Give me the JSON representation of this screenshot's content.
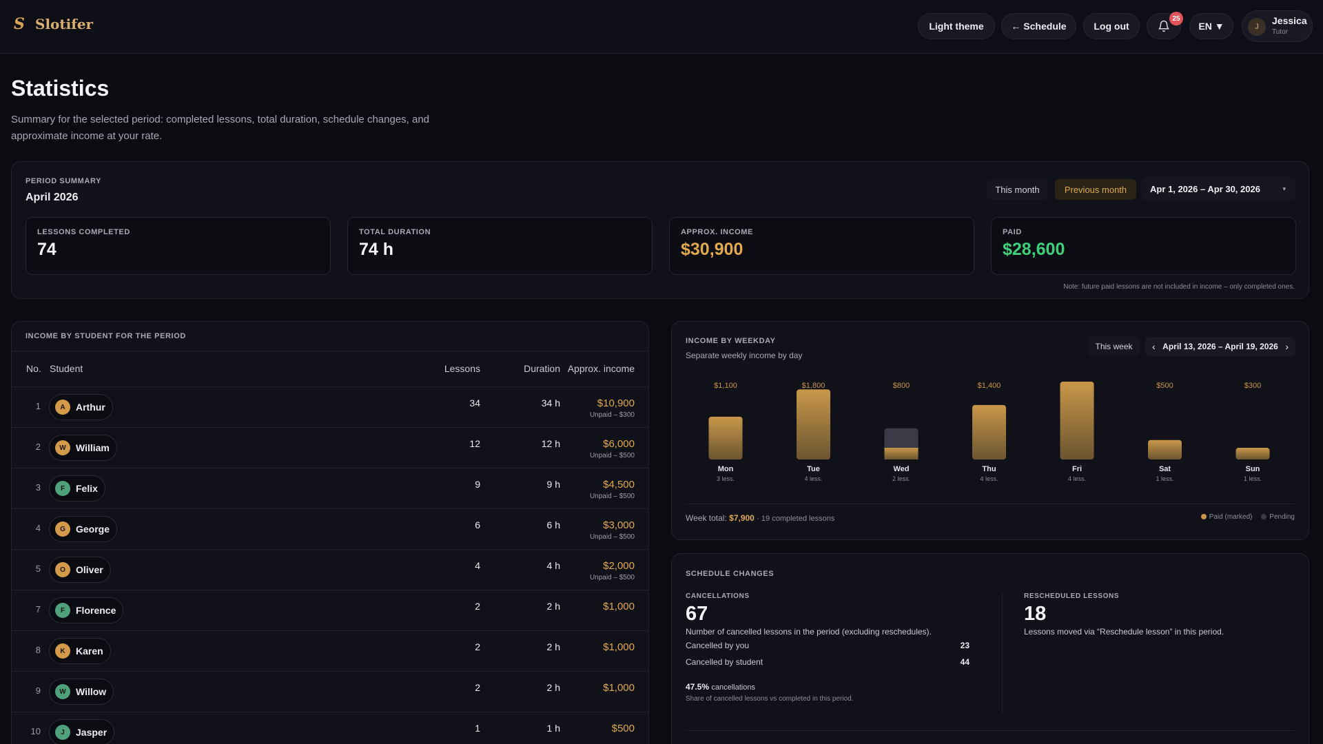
{
  "app": {
    "logo_mark": "S",
    "name": "Slotifer"
  },
  "header": {
    "theme_label": "Light theme",
    "schedule_label": "← Schedule",
    "logout_label": "Log out",
    "notifications_count": "25",
    "language": "EN ▼",
    "user": {
      "initial": "J",
      "name": "Jessica",
      "role": "Tutor"
    }
  },
  "page": {
    "title": "Statistics",
    "description": "Summary for the selected period: completed lessons, total duration, schedule changes, and approximate income at your rate."
  },
  "period": {
    "section_label": "PERIOD SUMMARY",
    "name": "April 2026",
    "this_month_label": "This month",
    "previous_month_label": "Previous month",
    "range": "Apr 1, 2026 – Apr 30, 2026",
    "dropdown_arrow": "▾",
    "stats": [
      {
        "label": "LESSONS COMPLETED",
        "value": "74",
        "color": "#f4f4f8"
      },
      {
        "label": "TOTAL DURATION",
        "value": "74 h",
        "color": "#f4f4f8"
      },
      {
        "label": "APPROX. INCOME",
        "value": "$30,900",
        "color": "#e0a94d"
      },
      {
        "label": "PAID",
        "value": "$28,600",
        "color": "#3fd07a"
      }
    ],
    "note": "Note: future paid lessons are not included in income – only completed ones."
  },
  "students": {
    "section_label": "INCOME BY STUDENT FOR THE PERIOD",
    "columns": {
      "no": "No.",
      "student": "Student",
      "lessons": "Lessons",
      "duration": "Duration",
      "income": "Approx. income"
    },
    "rows": [
      {
        "no": "1",
        "initial": "A",
        "name": "Arthur",
        "lessons": "34",
        "duration": "34 h",
        "income": "$10,900",
        "unpaid": "Unpaid – $300",
        "avatar_color": "#d39a4a"
      },
      {
        "no": "2",
        "initial": "W",
        "name": "William",
        "lessons": "12",
        "duration": "12 h",
        "income": "$6,000",
        "unpaid": "Unpaid – $500",
        "avatar_color": "#d39a4a"
      },
      {
        "no": "3",
        "initial": "F",
        "name": "Felix",
        "lessons": "9",
        "duration": "9 h",
        "income": "$4,500",
        "unpaid": "Unpaid – $500",
        "avatar_color": "#4fa07c"
      },
      {
        "no": "4",
        "initial": "G",
        "name": "George",
        "lessons": "6",
        "duration": "6 h",
        "income": "$3,000",
        "unpaid": "Unpaid – $500",
        "avatar_color": "#d39a4a"
      },
      {
        "no": "5",
        "initial": "O",
        "name": "Oliver",
        "lessons": "4",
        "duration": "4 h",
        "income": "$2,000",
        "unpaid": "Unpaid – $500",
        "avatar_color": "#d39a4a"
      },
      {
        "no": "7",
        "initial": "F",
        "name": "Florence",
        "lessons": "2",
        "duration": "2 h",
        "income": "$1,000",
        "unpaid": "",
        "avatar_color": "#4fa07c"
      },
      {
        "no": "8",
        "initial": "K",
        "name": "Karen",
        "lessons": "2",
        "duration": "2 h",
        "income": "$1,000",
        "unpaid": "",
        "avatar_color": "#d39a4a"
      },
      {
        "no": "9",
        "initial": "W",
        "name": "Willow",
        "lessons": "2",
        "duration": "2 h",
        "income": "$1,000",
        "unpaid": "",
        "avatar_color": "#4fa07c"
      },
      {
        "no": "10",
        "initial": "J",
        "name": "Jasper",
        "lessons": "1",
        "duration": "1 h",
        "income": "$500",
        "unpaid": "",
        "avatar_color": "#4fa07c"
      }
    ]
  },
  "weekday": {
    "section_label": "INCOME BY WEEKDAY",
    "subtitle": "Separate weekly income by day",
    "this_week_label": "This week",
    "prev_arrow": "‹",
    "next_arrow": "›",
    "range": "April 13, 2026 – April 19, 2026",
    "total_label": "Week total:",
    "total_value": "$7,900",
    "total_suffix": "· 19 completed lessons",
    "legend_paid": "Paid (marked)",
    "legend_pending": "Pending",
    "colors": {
      "paid": "#c9974a",
      "pending": "#3a3b47"
    }
  },
  "chart_data": {
    "type": "bar",
    "categories": [
      "Mon",
      "Tue",
      "Wed",
      "Thu",
      "Fri",
      "Sat",
      "Sun"
    ],
    "value_labels": [
      "$1,100",
      "$1,800",
      "$800",
      "$1,400",
      "$2,000",
      "$500",
      "$300"
    ],
    "lesson_labels": [
      "3 less.",
      "4 less.",
      "2 less.",
      "4 less.",
      "4 less.",
      "1 less.",
      "1 less."
    ],
    "series": [
      {
        "name": "Paid (marked)",
        "values": [
          1100,
          1800,
          300,
          1400,
          2000,
          500,
          300
        ]
      },
      {
        "name": "Pending",
        "values": [
          0,
          0,
          500,
          0,
          0,
          0,
          0
        ]
      }
    ],
    "ylim": [
      0,
      2000
    ]
  },
  "schedule": {
    "section_label": "SCHEDULE CHANGES",
    "cancellations": {
      "label": "CANCELLATIONS",
      "value": "67",
      "desc": "Number of cancelled lessons in the period (excluding reschedules).",
      "by_you_label": "Cancelled by you",
      "by_you_value": "23",
      "by_student_label": "Cancelled by student",
      "by_student_value": "44",
      "rate_value": "47.5%",
      "rate_label": "cancellations",
      "rate_desc": "Share of cancelled lessons vs completed in this period."
    },
    "rescheduled": {
      "label": "RESCHEDULED LESSONS",
      "value": "18",
      "desc": "Lessons moved via “Reschedule lesson” in this period."
    }
  }
}
